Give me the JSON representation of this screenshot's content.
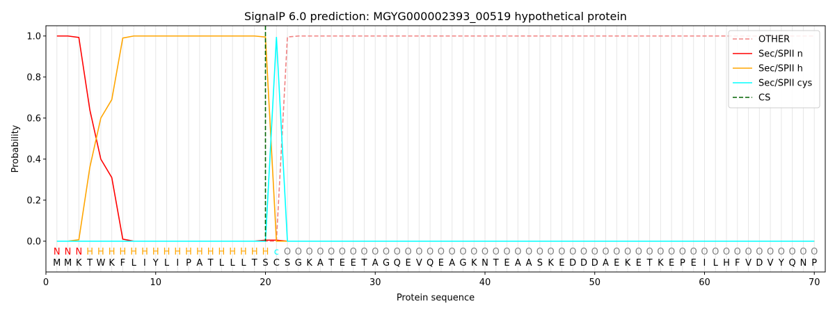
{
  "chart_data": {
    "type": "line",
    "title": "SignalP 6.0 prediction: MGYG000002393_00519 hypothetical protein",
    "xlabel": "Protein sequence",
    "ylabel": "Probability",
    "xlim": [
      0,
      71
    ],
    "ylim": [
      -0.15,
      1.05
    ],
    "x_ticks": [
      0,
      10,
      20,
      30,
      40,
      50,
      60,
      70
    ],
    "y_ticks": [
      0.0,
      0.2,
      0.4,
      0.6,
      0.8,
      1.0
    ],
    "x_tick_labels": [
      "0",
      "10",
      "20",
      "30",
      "40",
      "50",
      "60",
      "70"
    ],
    "y_tick_labels": [
      "0.0",
      "0.2",
      "0.4",
      "0.6",
      "0.8",
      "1.0"
    ],
    "grid": "vertical lines at each residue",
    "legend_position": "top-right",
    "sequence": "MMKTWKFLIYLIPATLLLTSCSGKATEETAGQEVQEAGKNTEAASKEDDDAEKETKEPEILHFVDVYQNP",
    "annotation": "NNNHHHHHHHHHHHHHHHHHcOOOOOOOOOOOOOOOOOOOOOOOOOOOOOOOOOOOOOOOOOOOOOOOOO",
    "annotation_colors": {
      "N": "#ff0000",
      "H": "#ffa500",
      "c": "#00ffff",
      "O": "#808080"
    },
    "cleavage_site": 20,
    "series": [
      {
        "name": "OTHER",
        "color": "#f08080",
        "dash": "dashed",
        "values": [
          0,
          0,
          0,
          0,
          0,
          0,
          0,
          0,
          0,
          0,
          0,
          0,
          0,
          0,
          0,
          0,
          0,
          0,
          0,
          0,
          0,
          0.995,
          1,
          1,
          1,
          1,
          1,
          1,
          1,
          1,
          1,
          1,
          1,
          1,
          1,
          1,
          1,
          1,
          1,
          1,
          1,
          1,
          1,
          1,
          1,
          1,
          1,
          1,
          1,
          1,
          1,
          1,
          1,
          1,
          1,
          1,
          1,
          1,
          1,
          1,
          1,
          1,
          1,
          1,
          1,
          1,
          1,
          1,
          1,
          1
        ]
      },
      {
        "name": "Sec/SPII n",
        "color": "#ff0000",
        "dash": "solid",
        "values": [
          1,
          1,
          0.993,
          0.64,
          0.4,
          0.31,
          0.01,
          0,
          0,
          0,
          0,
          0,
          0,
          0,
          0,
          0,
          0,
          0,
          0,
          0.005,
          0.005,
          0,
          0,
          0,
          0,
          0,
          0,
          0,
          0,
          0,
          0,
          0,
          0,
          0,
          0,
          0,
          0,
          0,
          0,
          0,
          0,
          0,
          0,
          0,
          0,
          0,
          0,
          0,
          0,
          0,
          0,
          0,
          0,
          0,
          0,
          0,
          0,
          0,
          0,
          0,
          0,
          0,
          0,
          0,
          0,
          0,
          0,
          0,
          0,
          0
        ]
      },
      {
        "name": "Sec/SPII h",
        "color": "#ffa500",
        "dash": "solid",
        "values": [
          0,
          0,
          0.007,
          0.36,
          0.6,
          0.69,
          0.99,
          1,
          1,
          1,
          1,
          1,
          1,
          1,
          1,
          1,
          1,
          1,
          1,
          0.995,
          0,
          0,
          0,
          0,
          0,
          0,
          0,
          0,
          0,
          0,
          0,
          0,
          0,
          0,
          0,
          0,
          0,
          0,
          0,
          0,
          0,
          0,
          0,
          0,
          0,
          0,
          0,
          0,
          0,
          0,
          0,
          0,
          0,
          0,
          0,
          0,
          0,
          0,
          0,
          0,
          0,
          0,
          0,
          0,
          0,
          0,
          0,
          0,
          0,
          0
        ]
      },
      {
        "name": "Sec/SPII cys",
        "color": "#00ffff",
        "dash": "solid",
        "values": [
          0,
          0,
          0,
          0,
          0,
          0,
          0,
          0,
          0,
          0,
          0,
          0,
          0,
          0,
          0,
          0,
          0,
          0,
          0,
          0,
          0.995,
          0,
          0,
          0,
          0,
          0,
          0,
          0,
          0,
          0,
          0,
          0,
          0,
          0,
          0,
          0,
          0,
          0,
          0,
          0,
          0,
          0,
          0,
          0,
          0,
          0,
          0,
          0,
          0,
          0,
          0,
          0,
          0,
          0,
          0,
          0,
          0,
          0,
          0,
          0,
          0,
          0,
          0,
          0,
          0,
          0,
          0,
          0,
          0,
          0
        ]
      },
      {
        "name": "CS",
        "color": "#006400",
        "dash": "dashed",
        "vertical_at": 20
      }
    ]
  }
}
